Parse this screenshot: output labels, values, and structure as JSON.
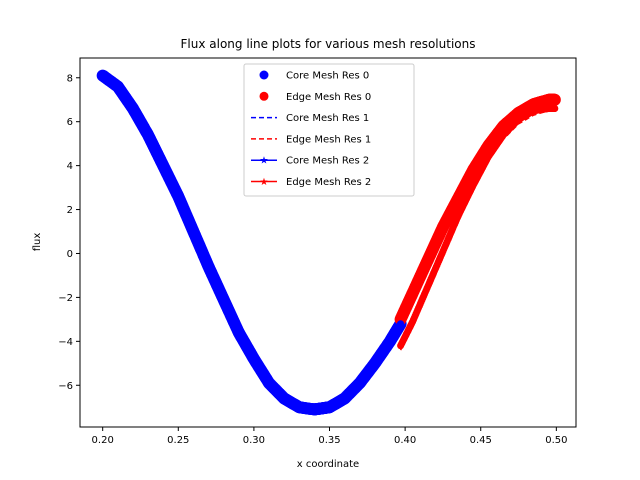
{
  "chart_data": {
    "type": "line",
    "title": "Flux along line plots for various mesh resolutions",
    "xlabel": "x coordinate",
    "ylabel": "flux",
    "xlim": [
      0.185,
      0.513
    ],
    "ylim": [
      -7.9,
      8.9
    ],
    "x_ticks": [
      0.2,
      0.25,
      0.3,
      0.35,
      0.4,
      0.45,
      0.5
    ],
    "x_tick_labels": [
      "0.20",
      "0.25",
      "0.30",
      "0.35",
      "0.40",
      "0.45",
      "0.50"
    ],
    "y_ticks": [
      -6,
      -4,
      -2,
      0,
      2,
      4,
      6,
      8
    ],
    "y_tick_labels": [
      "−6",
      "−4",
      "−2",
      "0",
      "2",
      "4",
      "6",
      "8"
    ],
    "grid": false,
    "legend_position": "upper-center",
    "series": [
      {
        "name": "Core Mesh Res 0",
        "color": "#0000ff",
        "style": "marker-circle",
        "x": [
          0.2,
          0.21,
          0.22,
          0.23,
          0.24,
          0.25,
          0.26,
          0.27,
          0.28,
          0.29,
          0.3,
          0.31,
          0.32,
          0.33,
          0.34,
          0.345,
          0.35,
          0.36,
          0.37,
          0.38,
          0.39,
          0.397
        ],
        "y": [
          8.1,
          7.6,
          6.6,
          5.4,
          4.0,
          2.6,
          1.0,
          -0.6,
          -2.1,
          -3.6,
          -4.8,
          -5.9,
          -6.6,
          -7.0,
          -7.1,
          -7.05,
          -7.0,
          -6.6,
          -5.9,
          -5.0,
          -4.0,
          -3.2
        ]
      },
      {
        "name": "Edge Mesh Res 0",
        "color": "#ff0000",
        "style": "marker-circle",
        "x": [
          0.397,
          0.405,
          0.415,
          0.425,
          0.435,
          0.445,
          0.455,
          0.465,
          0.475,
          0.485,
          0.495,
          0.499
        ],
        "y": [
          -3.0,
          -1.8,
          -0.3,
          1.2,
          2.5,
          3.8,
          4.9,
          5.8,
          6.4,
          6.8,
          7.0,
          7.0
        ]
      },
      {
        "name": "Core Mesh Res 1",
        "color": "#0000ff",
        "style": "dashed",
        "x": [
          0.2,
          0.21,
          0.22,
          0.23,
          0.24,
          0.25,
          0.26,
          0.27,
          0.28,
          0.29,
          0.3,
          0.31,
          0.32,
          0.33,
          0.34,
          0.35,
          0.36,
          0.37,
          0.38,
          0.39,
          0.397
        ],
        "y": [
          8.0,
          7.5,
          6.5,
          5.3,
          3.9,
          2.5,
          0.9,
          -0.7,
          -2.2,
          -3.7,
          -4.9,
          -6.0,
          -6.7,
          -7.0,
          -7.1,
          -6.9,
          -6.5,
          -5.8,
          -4.9,
          -3.9,
          -3.2
        ]
      },
      {
        "name": "Edge Mesh Res 1",
        "color": "#ff0000",
        "style": "dashed",
        "x": [
          0.397,
          0.405,
          0.415,
          0.425,
          0.435,
          0.445,
          0.455,
          0.465,
          0.475,
          0.485,
          0.495,
          0.499
        ],
        "y": [
          -4.4,
          -3.3,
          -1.8,
          -0.2,
          1.4,
          2.9,
          4.2,
          5.2,
          5.9,
          6.3,
          6.5,
          6.5
        ]
      },
      {
        "name": "Core Mesh Res 2",
        "color": "#0000ff",
        "style": "solid-star",
        "x": [
          0.2,
          0.21,
          0.22,
          0.23,
          0.24,
          0.25,
          0.26,
          0.27,
          0.28,
          0.29,
          0.3,
          0.31,
          0.32,
          0.33,
          0.34,
          0.35,
          0.36,
          0.37,
          0.38,
          0.39,
          0.397
        ],
        "y": [
          8.05,
          7.55,
          6.55,
          5.35,
          3.95,
          2.55,
          0.95,
          -0.65,
          -2.15,
          -3.65,
          -4.85,
          -5.95,
          -6.65,
          -7.0,
          -7.1,
          -6.95,
          -6.55,
          -5.85,
          -4.95,
          -3.95,
          -3.2
        ]
      },
      {
        "name": "Edge Mesh Res 2",
        "color": "#ff0000",
        "style": "solid-star",
        "x": [
          0.397,
          0.405,
          0.415,
          0.425,
          0.435,
          0.445,
          0.455,
          0.465,
          0.475,
          0.485,
          0.495,
          0.499
        ],
        "y": [
          -4.2,
          -3.1,
          -1.5,
          0.1,
          1.7,
          3.1,
          4.4,
          5.4,
          6.1,
          6.5,
          6.6,
          6.6
        ]
      }
    ]
  }
}
